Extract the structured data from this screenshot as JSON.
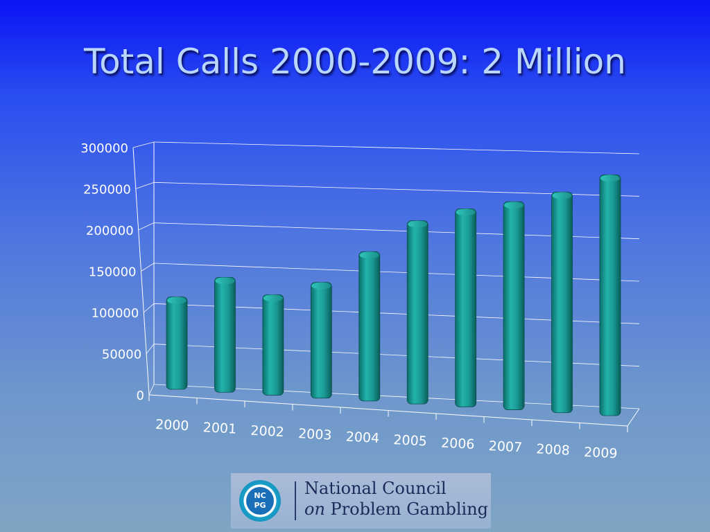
{
  "slide": {
    "title": "Total Calls 2000-2009: 2 Million"
  },
  "logo": {
    "badge_top": "NC",
    "badge_bottom": "PG",
    "line1": "National Council",
    "line2_italic": "on",
    "line2_rest": "Problem Gambling"
  },
  "colors": {
    "bar": "#1a9a94",
    "gridline": "#ffffff",
    "text": "#ffffff"
  },
  "chart_data": {
    "type": "bar",
    "title": "",
    "xlabel": "",
    "ylabel": "",
    "categories": [
      "2000",
      "2001",
      "2002",
      "2003",
      "2004",
      "2005",
      "2006",
      "2007",
      "2008",
      "2009"
    ],
    "values": [
      113000,
      140000,
      122000,
      140000,
      180000,
      220000,
      237000,
      248000,
      262000,
      285000
    ],
    "ylim": [
      0,
      300000
    ],
    "yticks": [
      "0",
      "50000",
      "100000",
      "150000",
      "200000",
      "250000",
      "300000"
    ],
    "grid": true,
    "legend": "none"
  }
}
